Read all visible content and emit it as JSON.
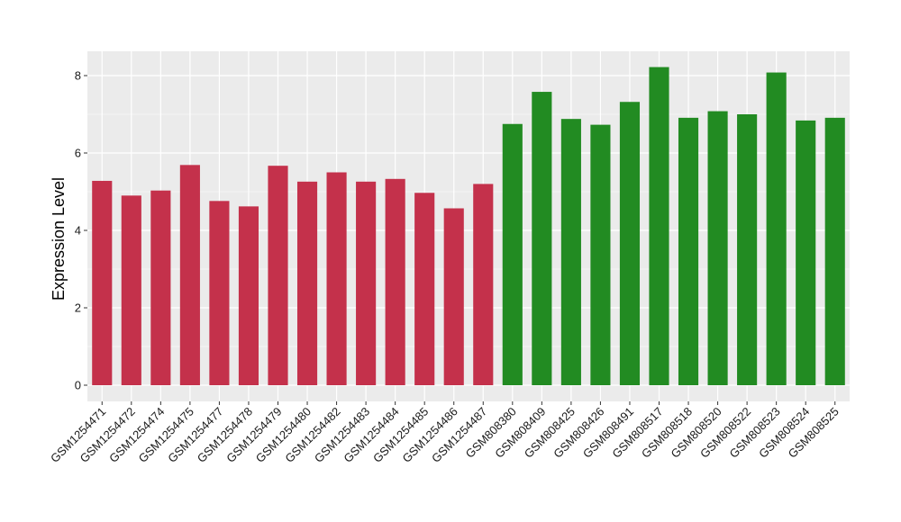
{
  "chart_data": {
    "type": "bar",
    "title": "",
    "xlabel": "",
    "ylabel": "Expression Level",
    "ylim": [
      0,
      8.6
    ],
    "yticks": [
      0,
      2,
      4,
      6,
      8
    ],
    "grid": true,
    "legend": "none",
    "panel_background": "#ebebeb",
    "gridline_color": "#ffffff",
    "categories": [
      "GSM1254471",
      "GSM1254472",
      "GSM1254474",
      "GSM1254475",
      "GSM1254477",
      "GSM1254478",
      "GSM1254479",
      "GSM1254480",
      "GSM1254482",
      "GSM1254483",
      "GSM1254484",
      "GSM1254485",
      "GSM1254486",
      "GSM1254487",
      "GSM808380",
      "GSM808409",
      "GSM808425",
      "GSM808426",
      "GSM808491",
      "GSM808517",
      "GSM808518",
      "GSM808520",
      "GSM808522",
      "GSM808523",
      "GSM808524",
      "GSM808525"
    ],
    "values": [
      5.28,
      4.9,
      5.03,
      5.69,
      4.76,
      4.62,
      5.67,
      5.26,
      5.5,
      5.26,
      5.33,
      4.97,
      4.57,
      5.2,
      6.75,
      7.58,
      6.88,
      6.73,
      7.32,
      8.22,
      6.91,
      7.08,
      7.0,
      8.08,
      6.84,
      6.91
    ],
    "bar_colors": [
      "#c4314b",
      "#c4314b",
      "#c4314b",
      "#c4314b",
      "#c4314b",
      "#c4314b",
      "#c4314b",
      "#c4314b",
      "#c4314b",
      "#c4314b",
      "#c4314b",
      "#c4314b",
      "#c4314b",
      "#c4314b",
      "#228b22",
      "#228b22",
      "#228b22",
      "#228b22",
      "#228b22",
      "#228b22",
      "#228b22",
      "#228b22",
      "#228b22",
      "#228b22",
      "#228b22",
      "#228b22"
    ]
  }
}
